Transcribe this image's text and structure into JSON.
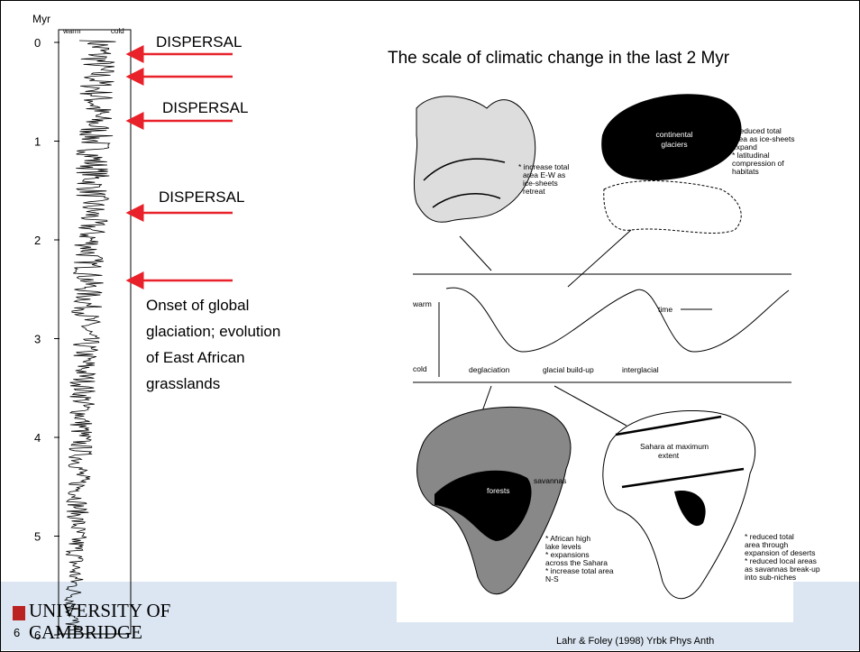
{
  "left_panel": {
    "unit": "Myr",
    "warm": "warm",
    "cold": "cold",
    "ticks": [
      "0",
      "1",
      "2",
      "3",
      "4",
      "5",
      "6"
    ]
  },
  "annotations": {
    "dispersal_1": "DISPERSAL",
    "dispersal_2": "DISPERSAL",
    "dispersal_3": "DISPERSAL",
    "onset": [
      "Onset of global",
      "glaciation; evolution",
      "of East African",
      "grasslands"
    ]
  },
  "title": "The scale of climatic change in the last 2 Myr",
  "figure": {
    "europe_warm": [
      "* increase total",
      "area E-W as",
      "ice-sheets",
      "retreat"
    ],
    "glaciers": [
      "continental",
      "glaciers"
    ],
    "europe_cold": [
      "* reduced total",
      "area as ice-sheets",
      "expand",
      "* latitudinal",
      "compression of",
      "habitats"
    ],
    "warm": "warm",
    "cold": "cold",
    "time": "time",
    "phases": [
      "deglaciation",
      "glacial build-up",
      "interglacial"
    ],
    "forests": "forests",
    "savannas": "savannas",
    "africa_warm": [
      "* African high",
      "lake levels",
      "* expansions",
      "across the Sahara",
      "* increase total area",
      "N-S"
    ],
    "sahara": [
      "Sahara at maximum",
      "extent"
    ],
    "africa_cold": [
      "* reduced total",
      "area through",
      "expansion of deserts",
      "* reduced local areas",
      "as savannas break-up",
      "into sub-niches"
    ]
  },
  "footer": {
    "university": [
      "UNIVERSITY OF",
      "CAMBRIDGE"
    ],
    "slide_number": "6",
    "citation": "Lahr & Foley (1998) Yrbk Phys Anth"
  }
}
